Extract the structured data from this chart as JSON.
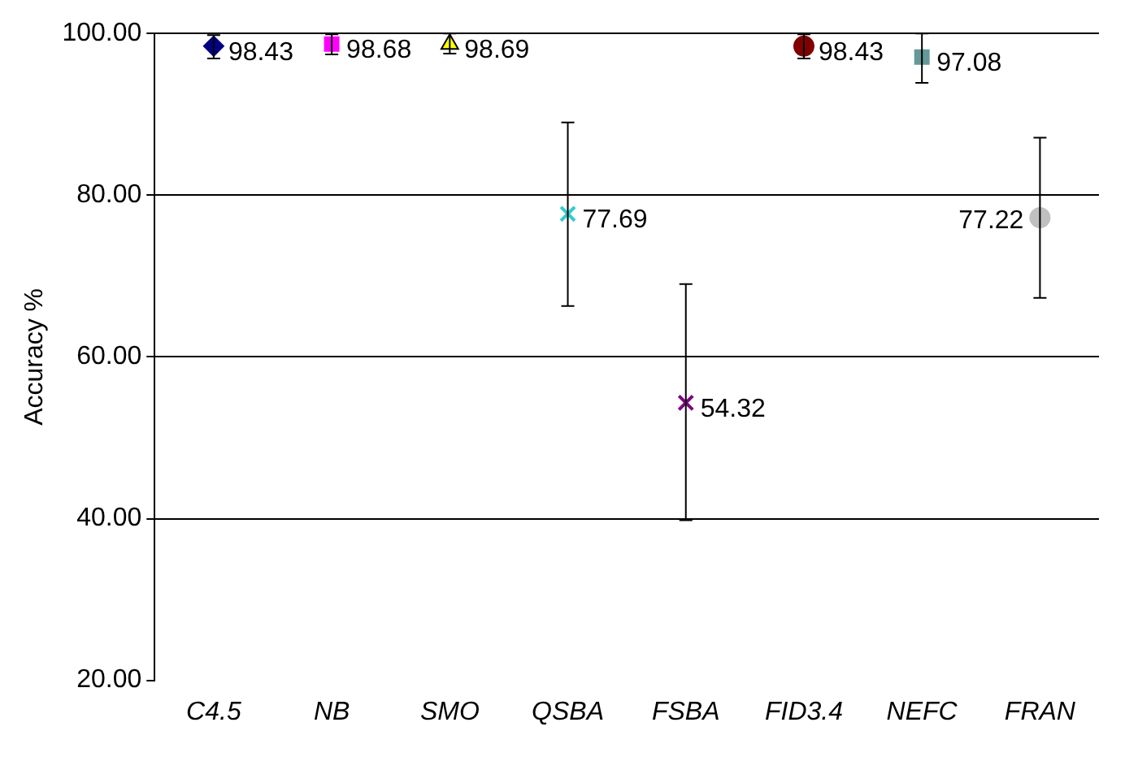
{
  "chart_data": {
    "type": "scatter",
    "ylabel": "Accuracy %",
    "categories": [
      "C4.5",
      "NB",
      "SMO",
      "QSBA",
      "FSBA",
      "FID3.4",
      "NEFC",
      "FRAN"
    ],
    "series": [
      {
        "color": "#000080",
        "marker": "diamond",
        "values": [
          98.43,
          null,
          null,
          null,
          null,
          null,
          null,
          null
        ],
        "errors": [
          [
            96.9,
            99.8
          ],
          null,
          null,
          null,
          null,
          null,
          null,
          null
        ]
      },
      {
        "color": "#ff00ff",
        "marker": "square",
        "values": [
          null,
          98.68,
          null,
          null,
          null,
          null,
          null,
          null
        ],
        "errors": [
          null,
          [
            97.4,
            99.9
          ],
          null,
          null,
          null,
          null,
          null,
          null
        ]
      },
      {
        "color": "#ffff00",
        "marker": "triangle",
        "values": [
          null,
          null,
          98.69,
          null,
          null,
          null,
          null,
          null
        ],
        "errors": [
          null,
          null,
          [
            97.5,
            100
          ],
          null,
          null,
          null,
          null,
          null
        ]
      },
      {
        "color": "#33cccc",
        "marker": "cross",
        "values": [
          null,
          null,
          null,
          77.69,
          null,
          null,
          null,
          null
        ],
        "errors": [
          null,
          null,
          null,
          [
            66.3,
            89
          ],
          null,
          null,
          null,
          null
        ]
      },
      {
        "color": "#800080",
        "marker": "cross",
        "values": [
          null,
          null,
          null,
          null,
          54.32,
          null,
          null,
          null
        ],
        "errors": [
          null,
          null,
          null,
          null,
          [
            39.8,
            69
          ],
          null,
          null,
          null
        ]
      },
      {
        "color": "#800000",
        "marker": "circle",
        "values": [
          null,
          null,
          null,
          null,
          null,
          98.43,
          null,
          null
        ],
        "errors": [
          null,
          null,
          null,
          null,
          null,
          [
            96.9,
            99.9
          ],
          null,
          null
        ]
      },
      {
        "color": "#669999",
        "marker": "square",
        "values": [
          null,
          null,
          null,
          null,
          null,
          null,
          97.08,
          null
        ],
        "errors": [
          null,
          null,
          null,
          null,
          null,
          null,
          [
            93.9,
            100
          ],
          null
        ]
      },
      {
        "color": "#c0c0c0",
        "marker": "circle",
        "values": [
          null,
          null,
          null,
          null,
          null,
          null,
          null,
          77.22
        ],
        "errors": [
          null,
          null,
          null,
          null,
          null,
          null,
          null,
          [
            67.3,
            87.1
          ]
        ]
      }
    ],
    "ylim": [
      20,
      100
    ],
    "yticks": [
      {
        "value": 20,
        "label": "20.00"
      },
      {
        "value": 40,
        "label": "40.00"
      },
      {
        "value": 60,
        "label": "60.00"
      },
      {
        "value": 80,
        "label": "80.00"
      },
      {
        "value": 100,
        "label": "100.00"
      }
    ],
    "grid": "y",
    "legend": false,
    "data_labels": true
  }
}
